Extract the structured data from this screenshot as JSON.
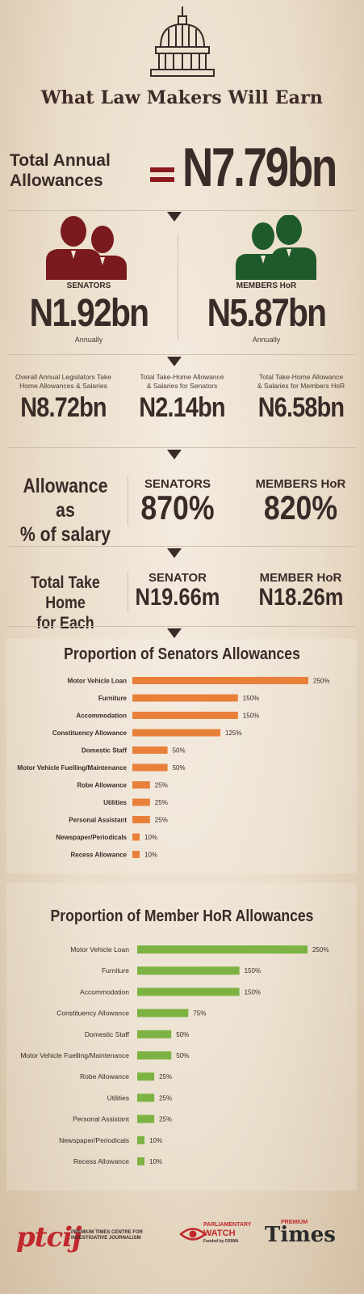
{
  "title": "What Law Makers Will Earn",
  "total": {
    "label_line1": "Total Annual",
    "label_line2": "Allowances",
    "value": "N7.79bn"
  },
  "groups": {
    "senators": {
      "label": "SENATORS",
      "value": "N1.92bn",
      "note": "Annually",
      "color": "#7a1a1e"
    },
    "members": {
      "label": "MEMBERS HoR",
      "value": "N5.87bn",
      "note": "Annually",
      "color": "#1f5a2a"
    }
  },
  "stats": [
    {
      "label_line1": "Overall Annual Legislators Take",
      "label_line2": "Home Allowances & Salaries",
      "value": "N8.72bn"
    },
    {
      "label_line1": "Total Take-Home Allowance",
      "label_line2": "& Salaries for Senators",
      "value": "N2.14bn"
    },
    {
      "label_line1": "Total Take-Home Allowance",
      "label_line2": "& Salaries for Members HoR",
      "value": "N6.58bn"
    }
  ],
  "pct_section": {
    "label_line1": "Allowance as",
    "label_line2": "% of salary",
    "senators_head": "SENATORS",
    "senators_value": "870%",
    "members_head": "MEMBERS HoR",
    "members_value": "820%"
  },
  "takehome_section": {
    "label_line1": "Total Take Home",
    "label_line2": "for Each",
    "senator_head": "SENATOR",
    "senator_value": "N19.66m",
    "member_head": "MEMBER HoR",
    "member_value": "N18.26m"
  },
  "chart_data": [
    {
      "type": "bar",
      "orientation": "horizontal",
      "title": "Proportion of Senators Allowances",
      "color": "#e8803a",
      "categories": [
        "Motor Vehicle Loan",
        "Furniture",
        "Accommodation",
        "Constituency Allowance",
        "Domestic Staff",
        "Motor Vehicle Fuelling/Maintenance",
        "Robe Allowance",
        "Utilities",
        "Personal Assistant",
        "Newspaper/Periodicals",
        "Recess Allowance"
      ],
      "values": [
        250,
        150,
        150,
        125,
        50,
        50,
        25,
        25,
        25,
        10,
        10
      ],
      "labels": [
        "250%",
        "150%",
        "150%",
        "125%",
        "50%",
        "50%",
        "25%",
        "25%",
        "25%",
        "10%",
        "10%"
      ]
    },
    {
      "type": "bar",
      "orientation": "horizontal",
      "title": "Proportion of Member HoR Allowances",
      "color": "#7cb342",
      "categories": [
        "Motor Vehicle Loan",
        "Furniture",
        "Accommodation",
        "Constituency Allowance",
        "Domestic Staff",
        "Motor Vehicle Fuelling/Maintenance",
        "Robe Allowance",
        "Utilities",
        "Personal Assistant",
        "Newspaper/Periodicals",
        "Recess Allowance"
      ],
      "values": [
        250,
        150,
        150,
        75,
        50,
        50,
        25,
        25,
        25,
        10,
        10
      ],
      "labels": [
        "250%",
        "150%",
        "150%",
        "75%",
        "50%",
        "50%",
        "25%",
        "25%",
        "25%",
        "10%",
        "10%"
      ]
    }
  ],
  "footer": {
    "ptcij_logo": "ptcij",
    "ptcij_text_line1": "PREMIUM TIMES CENTRE FOR",
    "ptcij_text_line2": "INVESTIGATIVE JOURNALISM",
    "pw_line1": "PARLIAMENTARY",
    "pw_line2": "WATCH",
    "pw_line3": "Funded by OSIWA",
    "pt_small": "PREMIUM",
    "pt_big": "Times"
  }
}
